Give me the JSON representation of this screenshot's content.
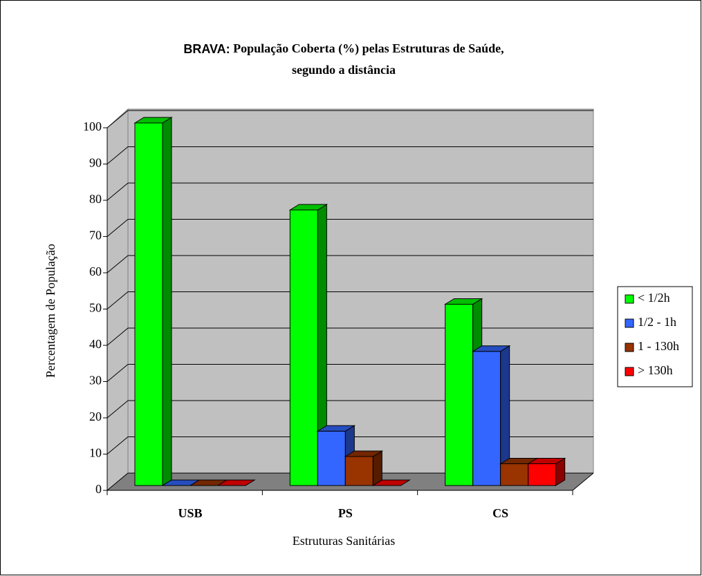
{
  "chart_data": {
    "type": "bar3d",
    "title": [
      "BRAVA:",
      "População Coberta (%) pelas Estruturas de Saúde,",
      "segundo a distância"
    ],
    "xlabel": "Estruturas Sanitárias",
    "ylabel": "Percentagem de População",
    "categories": [
      "USB",
      "PS",
      "CS"
    ],
    "series": [
      {
        "name": "< 1/2h",
        "color": "#00ff00",
        "values": [
          100,
          76,
          50
        ]
      },
      {
        "name": "1/2 - 1h",
        "color": "#3366ff",
        "values": [
          0,
          15,
          37
        ]
      },
      {
        "name": "1 - 130h",
        "color": "#993300",
        "values": [
          0,
          8,
          6
        ]
      },
      {
        "name": "> 130h",
        "color": "#ff0000",
        "values": [
          0,
          0,
          6
        ]
      }
    ],
    "ylim": [
      0,
      100
    ],
    "yticks": [
      0,
      10,
      20,
      30,
      40,
      50,
      60,
      70,
      80,
      90,
      100
    ],
    "grid": true,
    "legend": "right"
  }
}
